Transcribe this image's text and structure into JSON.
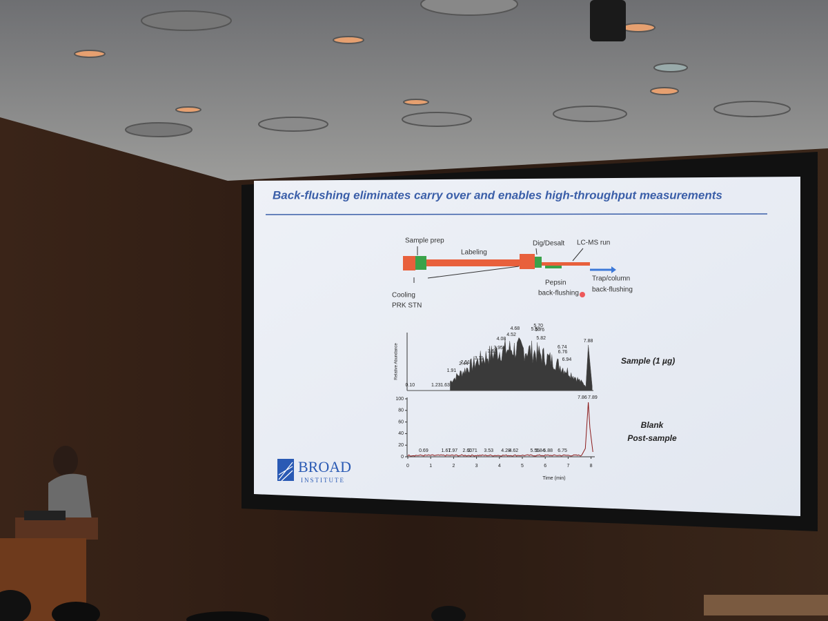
{
  "slide": {
    "title": "Back-flushing eliminates carry over and enables high-throughput measurements",
    "workflow": {
      "labels": [
        "Sample prep",
        "Labeling",
        "Dig/Desalt",
        "LC-MS run",
        "Cooling",
        "PRK STN",
        "Pepsin",
        "back-flushing",
        "Trap/column",
        "back-flushing"
      ]
    },
    "sample_trace": {
      "y_label": "Relative Abundance",
      "peaks": [
        "0.10",
        "1.23",
        "1.63",
        "1.91",
        "2.44",
        "2.51",
        "3.11",
        "3.69",
        "3.95",
        "4.08",
        "4.52",
        "4.68",
        "5.58",
        "5.70",
        "5.76",
        "5.82",
        "6.74",
        "6.76",
        "6.94",
        "7.88"
      ],
      "label": "Sample (1 µg)"
    },
    "blank_trace": {
      "peaks": [
        "0.69",
        "1.67",
        "1.97",
        "2.60",
        "2.71",
        "3.53",
        "4.28",
        "4.62",
        "5.55",
        "5.84",
        "5.88",
        "6.75",
        "7.86",
        "7.89"
      ],
      "yticks": [
        100,
        80,
        60,
        40,
        20,
        0
      ],
      "xticks": [
        0,
        1,
        2,
        3,
        4,
        5,
        6,
        7,
        8
      ],
      "x_label": "Time (min)",
      "label_lines": [
        "Blank",
        "Post-sample"
      ]
    },
    "logo": {
      "name": "BROAD",
      "sub": "INSTITUTE"
    }
  }
}
